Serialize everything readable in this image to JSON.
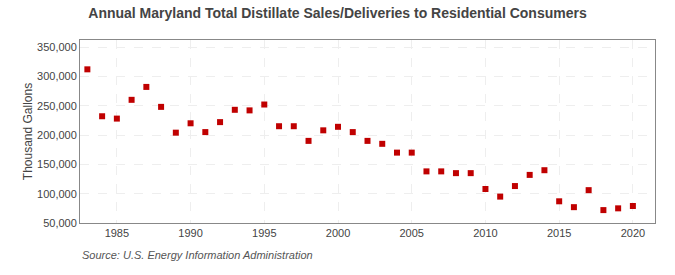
{
  "chart_data": {
    "type": "scatter",
    "title": "Annual Maryland Total Distillate Sales/Deliveries to Residential Consumers",
    "ylabel": "Thousand Gallons",
    "annotations": [
      "Source: U.S. Energy Information Administration"
    ],
    "x": [
      1983,
      1984,
      1985,
      1986,
      1987,
      1988,
      1989,
      1990,
      1991,
      1992,
      1993,
      1994,
      1995,
      1996,
      1997,
      1998,
      1999,
      2000,
      2001,
      2002,
      2003,
      2004,
      2005,
      2006,
      2007,
      2008,
      2009,
      2010,
      2011,
      2012,
      2013,
      2014,
      2015,
      2016,
      2017,
      2018,
      2019,
      2020
    ],
    "values": [
      312000,
      232000,
      228000,
      260000,
      282000,
      248000,
      204000,
      220000,
      205000,
      222000,
      243000,
      242000,
      252000,
      215000,
      215000,
      190000,
      208000,
      214000,
      205000,
      190000,
      185000,
      170000,
      170000,
      138000,
      138000,
      135000,
      135000,
      108000,
      95000,
      113000,
      132000,
      140000,
      87000,
      77000,
      106000,
      72000,
      75000,
      79000
    ],
    "color": "#c00000",
    "marker": "square",
    "grid": true,
    "xlim": [
      1982.5,
      2021.5
    ],
    "xticks": [
      1985,
      1990,
      1995,
      2000,
      2005,
      2010,
      2015,
      2020
    ],
    "ylim": [
      50000,
      362000
    ],
    "yticks": [
      {
        "value": 50000,
        "label": "50,000"
      },
      {
        "value": 100000,
        "label": "100,000"
      },
      {
        "value": 150000,
        "label": "150,000"
      },
      {
        "value": 200000,
        "label": "200,000"
      },
      {
        "value": 250000,
        "label": "250,000"
      },
      {
        "value": 300000,
        "label": "300,000"
      },
      {
        "value": 350000,
        "label": "350,000"
      }
    ]
  }
}
